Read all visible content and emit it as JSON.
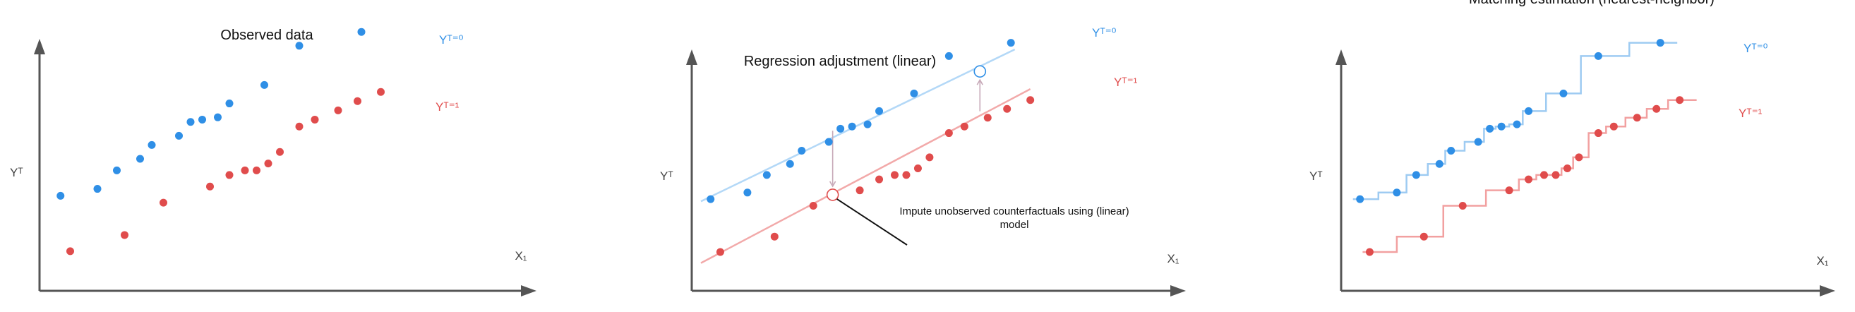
{
  "chart_data": [
    {
      "type": "scatter",
      "title": "Observed data",
      "xlabel": "X₁",
      "ylabel": "Yᵀ",
      "xlim": [
        0,
        10
      ],
      "ylim": [
        0,
        10
      ],
      "grid": false,
      "series": [
        {
          "name": "Yᵀ⁼⁰",
          "color": "#2f8fe6",
          "x": [
            0.25,
            1.2,
            1.7,
            2.3,
            2.6,
            3.3,
            3.6,
            3.9,
            4.3,
            4.6,
            5.5,
            6.4,
            8.0
          ],
          "y": [
            3.2,
            3.5,
            4.3,
            4.8,
            5.4,
            5.8,
            6.4,
            6.5,
            6.6,
            7.2,
            8.0,
            9.7,
            10.3
          ]
        },
        {
          "name": "Yᵀ⁼¹",
          "color": "#e04c4c",
          "x": [
            0.5,
            1.9,
            2.9,
            4.1,
            4.6,
            5.0,
            5.3,
            5.6,
            5.9,
            6.4,
            6.8,
            7.4,
            7.9,
            8.5
          ],
          "y": [
            0.8,
            1.5,
            2.9,
            3.6,
            4.1,
            4.3,
            4.3,
            4.6,
            5.1,
            6.2,
            6.5,
            6.9,
            7.3,
            7.7
          ]
        }
      ]
    },
    {
      "type": "scatter",
      "title": "Regression adjustment (linear)",
      "xlabel": "X₁",
      "ylabel": "Yᵀ",
      "xlim": [
        0,
        10
      ],
      "ylim": [
        0,
        10
      ],
      "grid": false,
      "annotation": "Impute unobserved counterfactuals using (linear) model",
      "series": [
        {
          "name": "Yᵀ⁼⁰",
          "color": "#2f8fe6",
          "x": [
            0.25,
            1.2,
            1.7,
            2.3,
            2.6,
            3.3,
            3.6,
            3.9,
            4.3,
            4.6,
            5.5,
            6.4,
            8.0
          ],
          "y": [
            3.2,
            3.5,
            4.3,
            4.8,
            5.4,
            5.8,
            6.4,
            6.5,
            6.6,
            7.2,
            8.0,
            9.7,
            10.3
          ]
        },
        {
          "name": "Yᵀ⁼¹",
          "color": "#e04c4c",
          "x": [
            0.5,
            1.9,
            2.9,
            4.1,
            4.6,
            5.0,
            5.3,
            5.6,
            5.9,
            6.4,
            6.8,
            7.4,
            7.9,
            8.5
          ],
          "y": [
            0.8,
            1.5,
            2.9,
            3.6,
            4.1,
            4.3,
            4.3,
            4.6,
            5.1,
            6.2,
            6.5,
            6.9,
            7.3,
            7.7
          ]
        }
      ],
      "fits": [
        {
          "series": "Yᵀ⁼⁰",
          "color": "#b3d8f7",
          "x": [
            0,
            8.1
          ],
          "y": [
            3.1,
            10.0
          ]
        },
        {
          "series": "Yᵀ⁼¹",
          "color": "#f2a9a9",
          "x": [
            0,
            8.5
          ],
          "y": [
            0.3,
            8.2
          ]
        }
      ],
      "imputed": [
        {
          "x": 3.4,
          "y_from": 6.5,
          "y_to": 3.4,
          "color": "#e04c4c"
        },
        {
          "x": 7.2,
          "y_from": 7.0,
          "y_to": 9.0,
          "color": "#2f8fe6"
        }
      ]
    },
    {
      "type": "scatter",
      "title": "Matching estimation (nearest-neighbor)",
      "xlabel": "X₁",
      "ylabel": "Yᵀ",
      "xlim": [
        0,
        10
      ],
      "ylim": [
        0,
        10
      ],
      "grid": false,
      "series": [
        {
          "name": "Yᵀ⁼⁰",
          "color": "#2f8fe6",
          "x": [
            0.25,
            1.2,
            1.7,
            2.3,
            2.6,
            3.3,
            3.6,
            3.9,
            4.3,
            4.6,
            5.5,
            6.4,
            8.0
          ],
          "y": [
            3.2,
            3.5,
            4.3,
            4.8,
            5.4,
            5.8,
            6.4,
            6.5,
            6.6,
            7.2,
            8.0,
            9.7,
            10.3
          ]
        },
        {
          "name": "Yᵀ⁼¹",
          "color": "#e04c4c",
          "x": [
            0.5,
            1.9,
            2.9,
            4.1,
            4.6,
            5.0,
            5.3,
            5.6,
            5.9,
            6.4,
            6.8,
            7.4,
            7.9,
            8.5
          ],
          "y": [
            0.8,
            1.5,
            2.9,
            3.6,
            4.1,
            4.3,
            4.3,
            4.6,
            5.1,
            6.2,
            6.5,
            6.9,
            7.3,
            7.7
          ]
        }
      ],
      "step_colors": [
        "#9ecbf2",
        "#f2a0a0"
      ]
    }
  ]
}
